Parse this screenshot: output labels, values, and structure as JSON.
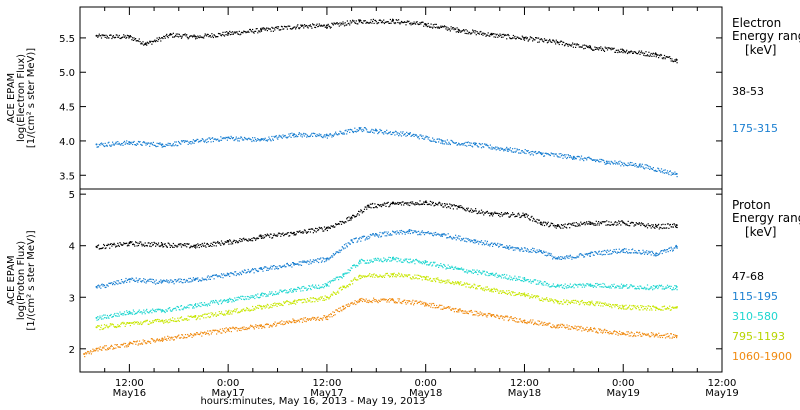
{
  "chart_data": {
    "type": "scatter",
    "xlabel": "hours:minutes, May 16, 2013 - May 19, 2013",
    "x_unit": "hours since 2013-05-16 00:00 UT",
    "xlim": [
      6,
      84
    ],
    "x_ticks": [
      {
        "x": 12,
        "time": "12:00",
        "date": "May16"
      },
      {
        "x": 24,
        "time": "0:00",
        "date": "May17"
      },
      {
        "x": 36,
        "time": "12:00",
        "date": "May17"
      },
      {
        "x": 48,
        "time": "0:00",
        "date": "May18"
      },
      {
        "x": 60,
        "time": "12:00",
        "date": "May18"
      },
      {
        "x": 72,
        "time": "0:00",
        "date": "May19"
      },
      {
        "x": 84,
        "time": "12:00",
        "date": "May19"
      }
    ],
    "panels": [
      {
        "name": "electron",
        "ylabel": [
          "ACE EPAM",
          "log(Electron Flux)",
          "[1/(cm² s ster MeV)]"
        ],
        "ylim": [
          3.3,
          5.95
        ],
        "yticks": [
          3.5,
          4.0,
          4.5,
          5.0,
          5.5
        ],
        "ytick_labels": [
          "3.5",
          "4.0",
          "4.5",
          "5.0",
          "5.5"
        ],
        "legend_title": [
          "Electron",
          "Energy ranges",
          "[keV]"
        ],
        "series": [
          {
            "name": "38-53",
            "color": "#000000",
            "x": [
              8,
              12,
              14,
              17,
              20,
              24,
              28,
              33,
              36,
              40,
              44,
              48,
              52,
              56,
              60,
              64,
              68,
              72,
              76,
              78.5
            ],
            "y": [
              5.53,
              5.52,
              5.42,
              5.55,
              5.52,
              5.57,
              5.62,
              5.68,
              5.68,
              5.75,
              5.75,
              5.7,
              5.62,
              5.55,
              5.5,
              5.44,
              5.36,
              5.32,
              5.26,
              5.18
            ]
          },
          {
            "name": "175-315",
            "color": "#1a7fd1",
            "x": [
              8,
              12,
              16,
              20,
              24,
              28,
              32,
              36,
              40,
              42,
              46,
              50,
              54,
              58,
              62,
              66,
              70,
              74,
              78.5
            ],
            "y": [
              3.95,
              3.98,
              3.95,
              4.0,
              4.05,
              4.02,
              4.1,
              4.08,
              4.18,
              4.15,
              4.1,
              4.0,
              3.95,
              3.88,
              3.82,
              3.77,
              3.7,
              3.65,
              3.52
            ]
          }
        ]
      },
      {
        "name": "proton",
        "ylabel": [
          "ACE EPAM",
          "log(Proton Flux)",
          "[1/(cm² s ster MeV)]"
        ],
        "ylim": [
          1.55,
          5.1
        ],
        "yticks": [
          2,
          3,
          4,
          5
        ],
        "ytick_labels": [
          "2",
          "3",
          "4",
          "5"
        ],
        "legend_title": [
          "Proton",
          "Energy ranges",
          "[keV]"
        ],
        "series": [
          {
            "name": "47-68",
            "color": "#000000",
            "x": [
              8,
              12,
              16,
              20,
              24,
              28,
              32,
              36,
              39,
              41,
              44,
              48,
              52,
              56,
              60,
              62,
              64,
              68,
              72,
              76,
              78.5
            ],
            "y": [
              3.98,
              4.05,
              4.03,
              4.0,
              4.08,
              4.18,
              4.25,
              4.35,
              4.55,
              4.78,
              4.82,
              4.85,
              4.75,
              4.62,
              4.6,
              4.45,
              4.38,
              4.45,
              4.45,
              4.38,
              4.4
            ]
          },
          {
            "name": "115-195",
            "color": "#1a7fd1",
            "x": [
              8,
              12,
              16,
              20,
              24,
              28,
              32,
              36,
              39,
              42,
              46,
              50,
              54,
              58,
              62,
              64,
              68,
              72,
              76,
              78.5
            ],
            "y": [
              3.2,
              3.35,
              3.3,
              3.35,
              3.45,
              3.55,
              3.65,
              3.75,
              4.1,
              4.22,
              4.28,
              4.22,
              4.1,
              3.97,
              3.9,
              3.75,
              3.85,
              3.92,
              3.85,
              3.98
            ]
          },
          {
            "name": "310-580",
            "color": "#1fd6d0",
            "x": [
              8,
              12,
              16,
              20,
              24,
              28,
              32,
              36,
              38,
              40,
              44,
              48,
              52,
              56,
              60,
              64,
              68,
              72,
              76,
              78.5
            ],
            "y": [
              2.6,
              2.72,
              2.75,
              2.85,
              2.95,
              3.05,
              3.15,
              3.25,
              3.45,
              3.7,
              3.75,
              3.68,
              3.55,
              3.45,
              3.35,
              3.22,
              3.25,
              3.22,
              3.2,
              3.2
            ]
          },
          {
            "name": "795-1193",
            "color": "#c7e600",
            "x": [
              8,
              12,
              16,
              20,
              24,
              28,
              32,
              36,
              38,
              40,
              44,
              48,
              52,
              56,
              60,
              64,
              68,
              72,
              76,
              78.5
            ],
            "y": [
              2.42,
              2.5,
              2.55,
              2.62,
              2.72,
              2.82,
              2.92,
              3.0,
              3.2,
              3.42,
              3.45,
              3.38,
              3.28,
              3.15,
              3.05,
              2.92,
              2.9,
              2.82,
              2.8,
              2.8
            ]
          },
          {
            "name": "1060-1900",
            "color": "#f08a10",
            "x": [
              6.5,
              8,
              12,
              16,
              20,
              24,
              28,
              32,
              36,
              38,
              40,
              44,
              48,
              52,
              56,
              60,
              64,
              68,
              72,
              76,
              78.5
            ],
            "y": [
              1.9,
              2.0,
              2.1,
              2.2,
              2.28,
              2.38,
              2.45,
              2.55,
              2.62,
              2.82,
              2.95,
              2.95,
              2.88,
              2.75,
              2.65,
              2.55,
              2.45,
              2.38,
              2.3,
              2.28,
              2.25
            ]
          }
        ]
      }
    ]
  }
}
